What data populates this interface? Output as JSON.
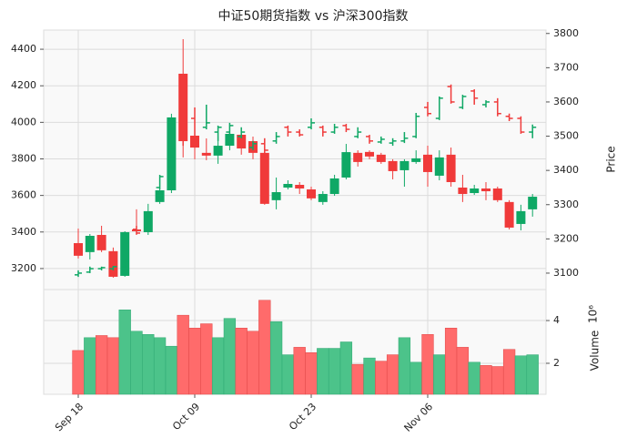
{
  "chart_data": {
    "type": "candlestick",
    "title": "中证50期货指数 vs 沪深300指数",
    "categories": [
      "Sep 18",
      null,
      null,
      null,
      null,
      null,
      null,
      null,
      null,
      null,
      "Oct 09",
      null,
      null,
      null,
      null,
      null,
      null,
      null,
      null,
      null,
      "Oct 23",
      null,
      null,
      null,
      null,
      null,
      null,
      null,
      null,
      null,
      "Nov 06",
      null,
      null,
      null,
      null,
      null,
      null,
      null,
      null,
      null
    ],
    "up_color": "#0fa865",
    "down_color": "#f03a3a",
    "ylim": [
      3085,
      4505
    ],
    "yticks": [
      3200,
      3400,
      3600,
      3800,
      4000,
      4200,
      4400
    ],
    "y2lim": [
      3052,
      3810
    ],
    "y2ticks": [
      3100,
      3200,
      3300,
      3400,
      3500,
      3600,
      3700,
      3800
    ],
    "y2label": "Price",
    "grid": true,
    "series": [
      {
        "type": "candlestick",
        "open": [
          3339,
          3290,
          3384,
          3295,
          3160,
          3414,
          3399,
          3564,
          3628,
          4266,
          3927,
          3833,
          3818,
          3872,
          3932,
          3897,
          3833,
          3574,
          3643,
          3658,
          3633,
          3564,
          3608,
          3698,
          3833,
          3838,
          3823,
          3788,
          3738,
          3783,
          3823,
          3708,
          3823,
          3643,
          3613,
          3638,
          3638,
          3564,
          3444,
          3524
        ],
        "high": [
          3419,
          3389,
          3434,
          3315,
          3404,
          3524,
          3554,
          3638,
          4047,
          4455,
          3987,
          3912,
          3922,
          3987,
          3937,
          3922,
          3897,
          3698,
          3683,
          3673,
          3648,
          3623,
          3713,
          3882,
          3847,
          3847,
          3833,
          3798,
          3798,
          3847,
          3872,
          3847,
          3862,
          3713,
          3658,
          3673,
          3648,
          3574,
          3549,
          3608
        ],
        "low": [
          3255,
          3250,
          3290,
          3150,
          3155,
          3394,
          3384,
          3554,
          3613,
          3808,
          3798,
          3793,
          3773,
          3847,
          3823,
          3798,
          3549,
          3524,
          3633,
          3608,
          3574,
          3549,
          3598,
          3688,
          3758,
          3798,
          3773,
          3688,
          3648,
          3773,
          3648,
          3683,
          3648,
          3564,
          3603,
          3574,
          3564,
          3414,
          3409,
          3484
        ],
        "close": [
          3270,
          3379,
          3300,
          3155,
          3399,
          3404,
          3514,
          3628,
          4027,
          3897,
          3862,
          3818,
          3872,
          3937,
          3857,
          3833,
          3554,
          3618,
          3663,
          3638,
          3584,
          3608,
          3693,
          3837,
          3783,
          3813,
          3783,
          3733,
          3788,
          3803,
          3728,
          3808,
          3673,
          3608,
          3638,
          3623,
          3574,
          3424,
          3514,
          3593
        ]
      },
      {
        "type": "ohlc",
        "axis": "y2",
        "open": [
          3095,
          3103,
          3113,
          3113,
          3119,
          3228,
          3233,
          3350,
          3411,
          3579,
          3552,
          3526,
          3512,
          3512,
          3499,
          3467,
          3478,
          3486,
          3526,
          3512,
          3526,
          3526,
          3512,
          3531,
          3499,
          3499,
          3483,
          3480,
          3486,
          3499,
          3584,
          3552,
          3645,
          3584,
          3632,
          3592,
          3600,
          3558,
          3552,
          3512
        ],
        "high": [
          3108,
          3119,
          3119,
          3121,
          3140,
          3238,
          3270,
          3387,
          3472,
          3632,
          3584,
          3592,
          3531,
          3539,
          3526,
          3486,
          3494,
          3512,
          3531,
          3520,
          3552,
          3531,
          3536,
          3536,
          3526,
          3504,
          3499,
          3494,
          3512,
          3568,
          3600,
          3616,
          3651,
          3621,
          3637,
          3605,
          3611,
          3566,
          3558,
          3534
        ],
        "low": [
          3089,
          3100,
          3108,
          3108,
          3113,
          3212,
          3230,
          3345,
          3406,
          3472,
          3472,
          3520,
          3486,
          3504,
          3494,
          3459,
          3440,
          3478,
          3499,
          3499,
          3520,
          3499,
          3507,
          3512,
          3494,
          3478,
          3478,
          3472,
          3480,
          3494,
          3558,
          3547,
          3595,
          3579,
          3592,
          3584,
          3558,
          3544,
          3507,
          3494
        ],
        "close": [
          3100,
          3113,
          3116,
          3119,
          3135,
          3217,
          3265,
          3382,
          3462,
          3512,
          3499,
          3539,
          3526,
          3531,
          3512,
          3478,
          3459,
          3499,
          3512,
          3504,
          3539,
          3512,
          3526,
          3520,
          3512,
          3486,
          3491,
          3486,
          3494,
          3558,
          3566,
          3611,
          3600,
          3616,
          3611,
          3600,
          3566,
          3552,
          3512,
          3526
        ]
      }
    ],
    "volume": {
      "type": "bar",
      "ylabel": "Volume",
      "scale_label": "10⁶",
      "up_color": "#4cc38a",
      "down_color": "#ff6b6b",
      "values": [
        2.6,
        3.2,
        3.3,
        3.2,
        4.5,
        3.5,
        3.35,
        3.2,
        2.8,
        4.25,
        3.65,
        3.85,
        3.2,
        4.1,
        3.65,
        3.5,
        4.95,
        3.95,
        2.4,
        2.75,
        2.5,
        2.7,
        2.7,
        3.0,
        1.95,
        2.25,
        2.1,
        2.4,
        3.2,
        2.05,
        3.35,
        2.4,
        3.65,
        2.75,
        2.05,
        1.9,
        1.85,
        2.65,
        2.35,
        2.4
      ],
      "ylim": [
        0.55,
        5.45
      ],
      "yticks": [
        2,
        4
      ]
    }
  }
}
